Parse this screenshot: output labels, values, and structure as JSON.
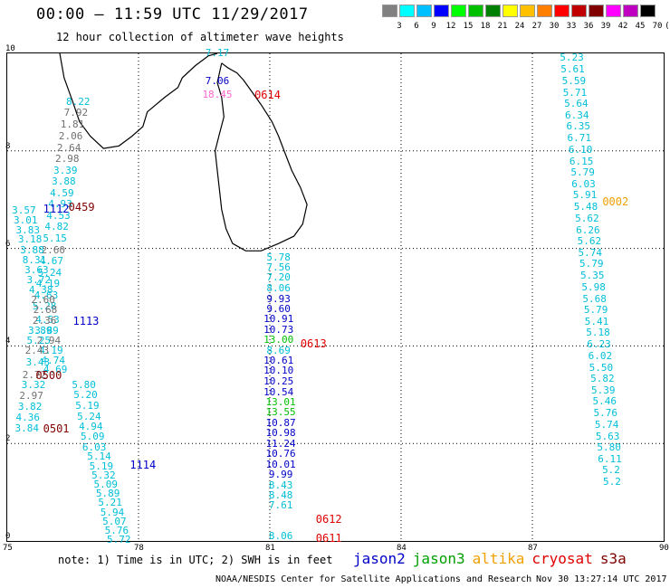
{
  "title": "00:00 – 11:59 UTC 11/29/2017",
  "subtitle": "12 hour collection of altimeter wave heights",
  "legend": {
    "colors": [
      "#808080",
      "#00ffff",
      "#00c0ff",
      "#0000ff",
      "#00ff00",
      "#00c000",
      "#008000",
      "#ffff00",
      "#ffc000",
      "#ff8000",
      "#ff0000",
      "#c00000",
      "#800000",
      "#ff00ff",
      "#c000c0",
      "#000000"
    ],
    "labels": [
      "3",
      "6",
      "9",
      "12",
      "15",
      "18",
      "21",
      "24",
      "27",
      "30",
      "33",
      "36",
      "39",
      "42",
      "45",
      "70",
      "(ft)"
    ]
  },
  "axes": {
    "x_ticks": [
      "75",
      "78",
      "81",
      "84",
      "87",
      "90"
    ],
    "y_ticks": [
      "0",
      "2",
      "4",
      "6",
      "8",
      "10"
    ],
    "x_range": [
      75,
      90
    ],
    "y_range": [
      0,
      10
    ]
  },
  "colors": {
    "cyan": "#00bfd8",
    "blue": "#0000c8",
    "gray": "#707070",
    "green": "#00c000",
    "orange": "#f0a000",
    "red": "#e00000",
    "darkred": "#800000",
    "pink": "#ff66cc"
  },
  "tracks": [
    {
      "label": "0614",
      "label_color": "red",
      "label_x": 80.65,
      "label_y": 9.15,
      "points": [
        {
          "x": 79.8,
          "y": 10.0,
          "v": "7.17",
          "c": "cyan"
        },
        {
          "x": 79.8,
          "y": 9.42,
          "v": "7.06",
          "c": "blue"
        },
        {
          "x": 79.8,
          "y": 9.15,
          "v": "18.45",
          "c": "pink"
        }
      ]
    },
    {
      "label": "0459",
      "label_color": "darkred",
      "label_x": 76.4,
      "label_y": 6.85,
      "points": [
        {
          "x": 76.62,
          "y": 9.0,
          "v": "8.22",
          "c": "cyan"
        },
        {
          "x": 76.57,
          "y": 8.77,
          "v": "7.92",
          "c": "gray"
        },
        {
          "x": 76.49,
          "y": 8.53,
          "v": "1.81",
          "c": "gray"
        },
        {
          "x": 76.45,
          "y": 8.29,
          "v": "2.06",
          "c": "gray"
        },
        {
          "x": 76.41,
          "y": 8.06,
          "v": "2.64",
          "c": "gray"
        },
        {
          "x": 76.37,
          "y": 7.83,
          "v": "2.98",
          "c": "gray"
        },
        {
          "x": 76.33,
          "y": 7.59,
          "v": "3.39",
          "c": "cyan"
        },
        {
          "x": 76.29,
          "y": 7.36,
          "v": "3.88",
          "c": "cyan"
        },
        {
          "x": 76.25,
          "y": 7.13,
          "v": "4.59",
          "c": "cyan"
        },
        {
          "x": 76.21,
          "y": 6.9,
          "v": "4.93",
          "c": "cyan"
        },
        {
          "x": 76.17,
          "y": 6.66,
          "v": "4.53",
          "c": "cyan"
        },
        {
          "x": 76.13,
          "y": 6.43,
          "v": "4.82",
          "c": "cyan"
        },
        {
          "x": 76.09,
          "y": 6.2,
          "v": "5.15",
          "c": "cyan"
        },
        {
          "x": 76.05,
          "y": 5.96,
          "v": "2.60",
          "c": "gray"
        },
        {
          "x": 76.01,
          "y": 5.73,
          "v": "4.67",
          "c": "cyan"
        },
        {
          "x": 75.97,
          "y": 5.5,
          "v": "5.24",
          "c": "cyan"
        },
        {
          "x": 75.93,
          "y": 5.26,
          "v": "4.19",
          "c": "cyan"
        },
        {
          "x": 75.89,
          "y": 5.03,
          "v": "4.63",
          "c": "cyan"
        },
        {
          "x": 75.85,
          "y": 4.8,
          "v": "5.28",
          "c": "cyan"
        }
      ]
    },
    {
      "label": "1112",
      "label_color": "blue",
      "label_x": 75.82,
      "label_y": 6.8,
      "points": [
        {
          "x": 75.38,
          "y": 6.78,
          "v": "3.57",
          "c": "cyan"
        },
        {
          "x": 75.42,
          "y": 6.57,
          "v": "3.01",
          "c": "cyan"
        },
        {
          "x": 75.47,
          "y": 6.37,
          "v": "3.83",
          "c": "cyan"
        },
        {
          "x": 75.52,
          "y": 6.17,
          "v": "3.18",
          "c": "cyan"
        },
        {
          "x": 75.57,
          "y": 5.96,
          "v": "3.88",
          "c": "cyan"
        },
        {
          "x": 75.62,
          "y": 5.76,
          "v": "8.31",
          "c": "cyan"
        },
        {
          "x": 75.67,
          "y": 5.55,
          "v": "3.63",
          "c": "cyan"
        },
        {
          "x": 75.72,
          "y": 5.35,
          "v": "3.72",
          "c": "cyan"
        },
        {
          "x": 75.77,
          "y": 5.14,
          "v": "4.38",
          "c": "cyan"
        },
        {
          "x": 75.82,
          "y": 4.94,
          "v": "2.60",
          "c": "gray"
        },
        {
          "x": 75.87,
          "y": 4.73,
          "v": "2.68",
          "c": "gray"
        },
        {
          "x": 75.92,
          "y": 4.53,
          "v": "4.53",
          "c": "cyan"
        }
      ]
    },
    {
      "label": "1113",
      "label_color": "blue",
      "label_x": 76.5,
      "label_y": 4.5,
      "points": [
        {
          "x": 75.85,
          "y": 4.5,
          "v": "2.36",
          "c": "gray"
        },
        {
          "x": 75.9,
          "y": 4.3,
          "v": "3.89",
          "c": "cyan"
        },
        {
          "x": 75.95,
          "y": 4.1,
          "v": "2.94",
          "c": "gray"
        },
        {
          "x": 76.0,
          "y": 3.9,
          "v": "4.19",
          "c": "cyan"
        },
        {
          "x": 76.05,
          "y": 3.7,
          "v": "4.74",
          "c": "cyan"
        },
        {
          "x": 76.1,
          "y": 3.5,
          "v": "4.69",
          "c": "cyan"
        }
      ]
    },
    {
      "label": "0500",
      "label_color": "darkred",
      "label_x": 75.65,
      "label_y": 3.4,
      "points": [
        {
          "x": 75.75,
          "y": 4.3,
          "v": "3.89",
          "c": "cyan"
        },
        {
          "x": 75.72,
          "y": 4.1,
          "v": "5.25",
          "c": "cyan"
        },
        {
          "x": 75.68,
          "y": 3.9,
          "v": "2.43",
          "c": "gray"
        },
        {
          "x": 75.7,
          "y": 3.65,
          "v": "3.43",
          "c": "cyan"
        },
        {
          "x": 75.62,
          "y": 3.4,
          "v": "2.72",
          "c": "gray"
        },
        {
          "x": 75.6,
          "y": 3.2,
          "v": "3.32",
          "c": "cyan"
        },
        {
          "x": 75.55,
          "y": 2.97,
          "v": "2.97",
          "c": "gray"
        },
        {
          "x": 75.52,
          "y": 2.75,
          "v": "3.82",
          "c": "cyan"
        },
        {
          "x": 75.47,
          "y": 2.52,
          "v": "4.36",
          "c": "cyan"
        },
        {
          "x": 75.45,
          "y": 2.3,
          "v": "3.84",
          "c": "cyan"
        }
      ]
    },
    {
      "label": "0501",
      "label_color": "darkred",
      "label_x": 75.82,
      "label_y": 2.3,
      "points": [
        {
          "x": 76.75,
          "y": 3.2,
          "v": "5.80",
          "c": "cyan"
        },
        {
          "x": 76.79,
          "y": 2.98,
          "v": "5.20",
          "c": "cyan"
        },
        {
          "x": 76.83,
          "y": 2.77,
          "v": "5.19",
          "c": "cyan"
        },
        {
          "x": 76.87,
          "y": 2.55,
          "v": "5.24",
          "c": "cyan"
        },
        {
          "x": 76.91,
          "y": 2.34,
          "v": "4.94",
          "c": "cyan"
        },
        {
          "x": 76.95,
          "y": 2.13,
          "v": "5.09",
          "c": "cyan"
        },
        {
          "x": 76.99,
          "y": 1.91,
          "v": "6.03",
          "c": "cyan"
        }
      ]
    },
    {
      "label": "1114",
      "label_color": "blue",
      "label_x": 77.8,
      "label_y": 1.55,
      "points": [
        {
          "x": 77.1,
          "y": 1.72,
          "v": "5.14",
          "c": "cyan"
        },
        {
          "x": 77.15,
          "y": 1.53,
          "v": "5.19",
          "c": "cyan"
        },
        {
          "x": 77.2,
          "y": 1.34,
          "v": "5.32",
          "c": "cyan"
        },
        {
          "x": 77.25,
          "y": 1.15,
          "v": "5.09",
          "c": "cyan"
        },
        {
          "x": 77.3,
          "y": 0.96,
          "v": "5.89",
          "c": "cyan"
        },
        {
          "x": 77.35,
          "y": 0.77,
          "v": "5.21",
          "c": "cyan"
        },
        {
          "x": 77.4,
          "y": 0.58,
          "v": "5.94",
          "c": "cyan"
        },
        {
          "x": 77.45,
          "y": 0.39,
          "v": "5.07",
          "c": "cyan"
        },
        {
          "x": 77.5,
          "y": 0.2,
          "v": "5.76",
          "c": "cyan"
        },
        {
          "x": 77.55,
          "y": 0.01,
          "v": "5.72",
          "c": "cyan"
        }
      ]
    },
    {
      "label": "0613",
      "label_color": "red",
      "label_x": 81.7,
      "label_y": 4.05,
      "points": [
        {
          "x": 81.2,
          "y": 5.81,
          "v": "5.78",
          "c": "cyan"
        },
        {
          "x": 81.2,
          "y": 5.6,
          "v": "7.56",
          "c": "cyan"
        },
        {
          "x": 81.2,
          "y": 5.39,
          "v": "7.20",
          "c": "cyan"
        },
        {
          "x": 81.2,
          "y": 5.18,
          "v": "8.06",
          "c": "cyan"
        },
        {
          "x": 81.2,
          "y": 4.96,
          "v": "9.93",
          "c": "blue"
        },
        {
          "x": 81.2,
          "y": 4.75,
          "v": "9.60",
          "c": "blue"
        },
        {
          "x": 81.2,
          "y": 4.54,
          "v": "10.91",
          "c": "blue"
        },
        {
          "x": 81.2,
          "y": 4.33,
          "v": "10.73",
          "c": "blue"
        },
        {
          "x": 81.2,
          "y": 4.11,
          "v": "13.00",
          "c": "green"
        },
        {
          "x": 81.2,
          "y": 3.9,
          "v": "8.69",
          "c": "cyan"
        },
        {
          "x": 81.2,
          "y": 3.69,
          "v": "10.61",
          "c": "blue"
        },
        {
          "x": 81.2,
          "y": 3.48,
          "v": "10.10",
          "c": "blue"
        },
        {
          "x": 81.2,
          "y": 3.26,
          "v": "10.25",
          "c": "blue"
        },
        {
          "x": 81.2,
          "y": 3.05,
          "v": "10.54",
          "c": "blue"
        }
      ]
    },
    {
      "label": "0612",
      "label_color": "red",
      "label_x": 82.05,
      "label_y": 0.45,
      "points": [
        {
          "x": 81.25,
          "y": 2.84,
          "v": "13.01",
          "c": "green"
        },
        {
          "x": 81.25,
          "y": 2.63,
          "v": "13.55",
          "c": "green"
        },
        {
          "x": 81.25,
          "y": 2.41,
          "v": "10.87",
          "c": "blue"
        },
        {
          "x": 81.25,
          "y": 2.2,
          "v": "10.98",
          "c": "blue"
        },
        {
          "x": 81.25,
          "y": 1.99,
          "v": "11.24",
          "c": "blue"
        },
        {
          "x": 81.25,
          "y": 1.78,
          "v": "10.76",
          "c": "blue"
        },
        {
          "x": 81.25,
          "y": 1.56,
          "v": "10.01",
          "c": "blue"
        },
        {
          "x": 81.25,
          "y": 1.35,
          "v": "9.99",
          "c": "blue"
        },
        {
          "x": 81.25,
          "y": 1.14,
          "v": "8.43",
          "c": "cyan"
        },
        {
          "x": 81.25,
          "y": 0.93,
          "v": "8.48",
          "c": "cyan"
        },
        {
          "x": 81.25,
          "y": 0.72,
          "v": "7.61",
          "c": "cyan"
        }
      ]
    },
    {
      "label": "0611",
      "label_color": "red",
      "label_x": 82.05,
      "label_y": 0.05,
      "points": [
        {
          "x": 81.25,
          "y": 0.09,
          "v": "8.06",
          "c": "cyan"
        }
      ]
    },
    {
      "label": "0002",
      "label_color": "orange",
      "label_x": 88.6,
      "label_y": 6.95,
      "points": [
        {
          "x": 87.9,
          "y": 9.9,
          "v": "5.23",
          "c": "cyan"
        },
        {
          "x": 87.92,
          "y": 9.66,
          "v": "5.61",
          "c": "cyan"
        },
        {
          "x": 87.95,
          "y": 9.43,
          "v": "5.59",
          "c": "cyan"
        },
        {
          "x": 87.97,
          "y": 9.19,
          "v": "5.71",
          "c": "cyan"
        },
        {
          "x": 88.0,
          "y": 8.96,
          "v": "5.64",
          "c": "cyan"
        },
        {
          "x": 88.02,
          "y": 8.72,
          "v": "6.34",
          "c": "cyan"
        },
        {
          "x": 88.05,
          "y": 8.49,
          "v": "6.35",
          "c": "cyan"
        },
        {
          "x": 88.07,
          "y": 8.25,
          "v": "6.71",
          "c": "cyan"
        },
        {
          "x": 88.1,
          "y": 8.02,
          "v": "6.10",
          "c": "cyan"
        },
        {
          "x": 88.12,
          "y": 7.78,
          "v": "6.15",
          "c": "cyan"
        },
        {
          "x": 88.15,
          "y": 7.55,
          "v": "5.79",
          "c": "cyan"
        },
        {
          "x": 88.17,
          "y": 7.31,
          "v": "6.03",
          "c": "cyan"
        },
        {
          "x": 88.2,
          "y": 7.08,
          "v": "5.91",
          "c": "cyan"
        },
        {
          "x": 88.22,
          "y": 6.84,
          "v": "5.48",
          "c": "cyan"
        },
        {
          "x": 88.25,
          "y": 6.61,
          "v": "5.62",
          "c": "cyan"
        },
        {
          "x": 88.27,
          "y": 6.37,
          "v": "6.26",
          "c": "cyan"
        },
        {
          "x": 88.3,
          "y": 6.14,
          "v": "5.62",
          "c": "cyan"
        },
        {
          "x": 88.32,
          "y": 5.9,
          "v": "5.74",
          "c": "cyan"
        },
        {
          "x": 88.35,
          "y": 5.67,
          "v": "5.79",
          "c": "cyan"
        },
        {
          "x": 88.37,
          "y": 5.43,
          "v": "5.35",
          "c": "cyan"
        },
        {
          "x": 88.4,
          "y": 5.2,
          "v": "5.98",
          "c": "cyan"
        },
        {
          "x": 88.42,
          "y": 4.96,
          "v": "5.68",
          "c": "cyan"
        },
        {
          "x": 88.45,
          "y": 4.73,
          "v": "5.79",
          "c": "cyan"
        },
        {
          "x": 88.47,
          "y": 4.49,
          "v": "5.41",
          "c": "cyan"
        },
        {
          "x": 88.5,
          "y": 4.26,
          "v": "5.18",
          "c": "cyan"
        },
        {
          "x": 88.52,
          "y": 4.02,
          "v": "6.23",
          "c": "cyan"
        },
        {
          "x": 88.55,
          "y": 3.79,
          "v": "6.02",
          "c": "cyan"
        },
        {
          "x": 88.57,
          "y": 3.55,
          "v": "5.50",
          "c": "cyan"
        },
        {
          "x": 88.6,
          "y": 3.32,
          "v": "5.82",
          "c": "cyan"
        },
        {
          "x": 88.62,
          "y": 3.08,
          "v": "5.39",
          "c": "cyan"
        },
        {
          "x": 88.65,
          "y": 2.85,
          "v": "5.46",
          "c": "cyan"
        },
        {
          "x": 88.67,
          "y": 2.61,
          "v": "5.76",
          "c": "cyan"
        },
        {
          "x": 88.7,
          "y": 2.38,
          "v": "5.74",
          "c": "cyan"
        },
        {
          "x": 88.72,
          "y": 2.14,
          "v": "5.63",
          "c": "cyan"
        },
        {
          "x": 88.75,
          "y": 1.91,
          "v": "5.80",
          "c": "cyan"
        },
        {
          "x": 88.77,
          "y": 1.67,
          "v": "6.11",
          "c": "cyan"
        },
        {
          "x": 88.8,
          "y": 1.44,
          "v": "5.2",
          "c": "cyan"
        },
        {
          "x": 88.82,
          "y": 1.2,
          "v": "5.2",
          "c": "cyan"
        }
      ]
    }
  ],
  "note": "note: 1) Time is in UTC; 2) SWH is in feet",
  "satellites": [
    {
      "name": "jason2",
      "color": "#0000c8"
    },
    {
      "name": "jason3",
      "color": "#00a000"
    },
    {
      "name": "altika",
      "color": "#f0a000"
    },
    {
      "name": "cryosat",
      "color": "#e00000"
    },
    {
      "name": "s3a",
      "color": "#800000"
    }
  ],
  "credit": "NOAA/NESDIS Center for Satellite Applications and Research",
  "timestamp": "Nov 30 13:27:14 UTC 2017"
}
